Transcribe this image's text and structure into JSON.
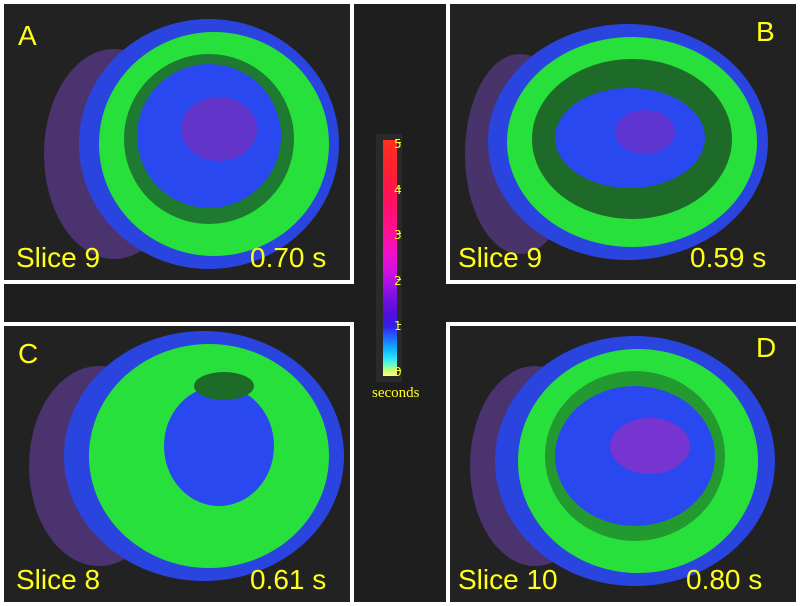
{
  "panels": [
    {
      "letter": "A",
      "slice": "Slice 9",
      "time": "0.70 s"
    },
    {
      "letter": "B",
      "slice": "Slice 9",
      "time": "0.59 s"
    },
    {
      "letter": "C",
      "slice": "Slice 8",
      "time": "0.61 s"
    },
    {
      "letter": "D",
      "slice": "Slice 10",
      "time": "0.80 s"
    }
  ],
  "colorbar": {
    "ticks": [
      "5",
      "4",
      "3",
      "2",
      "1",
      "0"
    ],
    "unit": "seconds",
    "colors": [
      "#ffff80",
      "#30e8ff",
      "#2a4cff",
      "#a010e8",
      "#ff1090",
      "#ff3020"
    ]
  },
  "colors": {
    "label": "#ffff1a",
    "panel_background": "#222222",
    "frame": "#ffffff"
  }
}
